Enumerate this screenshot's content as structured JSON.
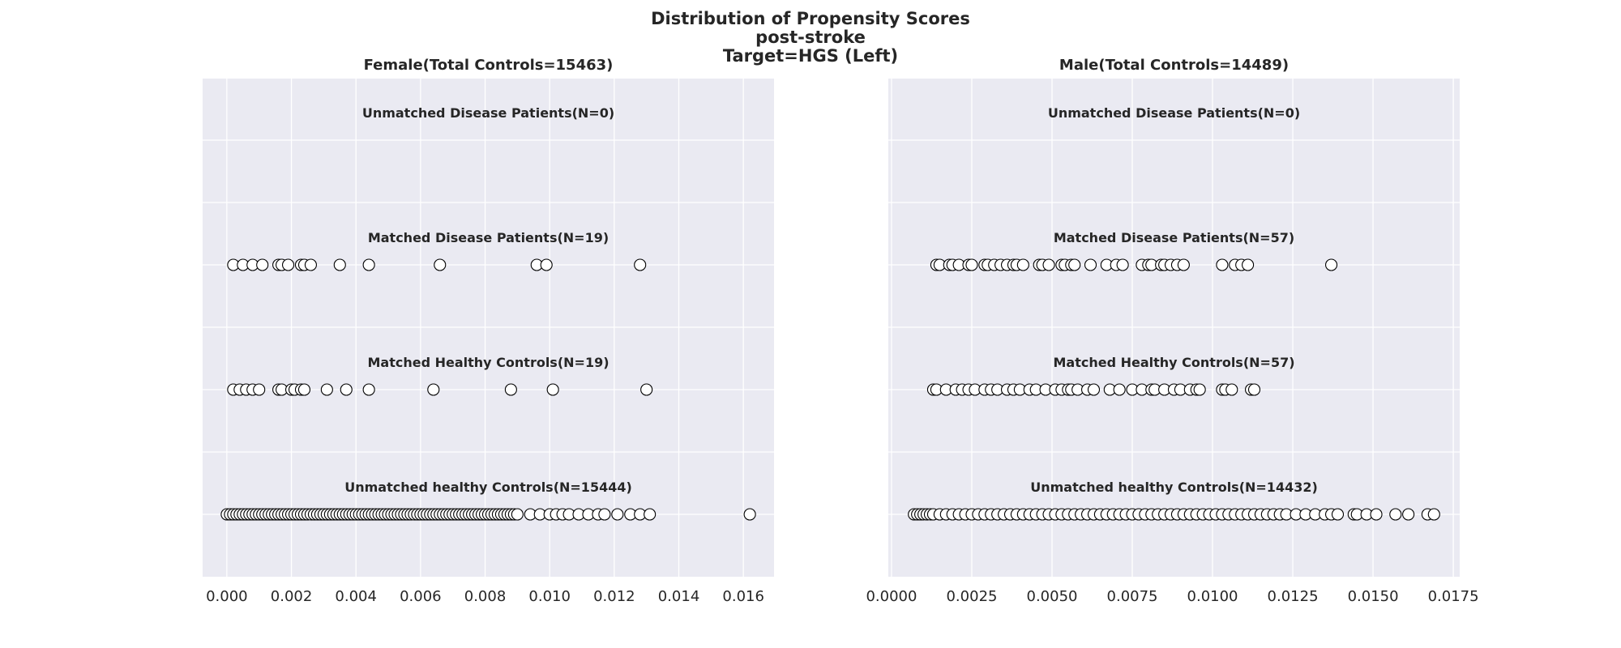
{
  "figure": {
    "title_lines": [
      "Distribution of Propensity Scores",
      "post-stroke",
      "Target=HGS (Left)"
    ],
    "background_color": "#eaeaf2",
    "grid_color": "#ffffff",
    "marker_face": "#ffffff",
    "marker_edge": "#000000"
  },
  "chart_data": [
    {
      "type": "scatter",
      "title": "Female(Total Controls=15463)",
      "xlabel": "",
      "ylabel": "",
      "xlim": [
        -0.00075,
        0.01695
      ],
      "xticks": [
        0.0,
        0.002,
        0.004,
        0.006,
        0.008,
        0.01,
        0.012,
        0.014,
        0.016
      ],
      "xtick_labels": [
        "0.000",
        "0.002",
        "0.004",
        "0.006",
        "0.008",
        "0.010",
        "0.012",
        "0.014",
        "0.016"
      ],
      "grid": true,
      "series": [
        {
          "name": "Unmatched Disease Patients(N=0)",
          "values": []
        },
        {
          "name": "Matched Disease Patients(N=19)",
          "values": [
            0.0002,
            0.0005,
            0.0008,
            0.0011,
            0.0016,
            0.0017,
            0.0019,
            0.0023,
            0.0024,
            0.0026,
            0.0035,
            0.0044,
            0.0066,
            0.0096,
            0.0099,
            0.0128
          ]
        },
        {
          "name": "Matched Healthy Controls(N=19)",
          "values": [
            0.0002,
            0.0004,
            0.0006,
            0.0008,
            0.001,
            0.0016,
            0.0017,
            0.002,
            0.0021,
            0.0023,
            0.0024,
            0.0031,
            0.0037,
            0.0044,
            0.0064,
            0.0088,
            0.0101,
            0.013
          ]
        },
        {
          "name": "Unmatched healthy Controls(N=15444)",
          "values": [
            0.0,
            0.0001,
            0.0002,
            0.0003,
            0.0004,
            0.0005,
            0.0006,
            0.0007,
            0.0008,
            0.0009,
            0.001,
            0.0011,
            0.0012,
            0.0013,
            0.0014,
            0.0015,
            0.0016,
            0.0017,
            0.0018,
            0.0019,
            0.002,
            0.0021,
            0.0022,
            0.0023,
            0.0024,
            0.0025,
            0.0026,
            0.0027,
            0.0028,
            0.0029,
            0.003,
            0.0031,
            0.0032,
            0.0033,
            0.0034,
            0.0035,
            0.0036,
            0.0037,
            0.0038,
            0.0039,
            0.004,
            0.0041,
            0.0042,
            0.0043,
            0.0044,
            0.0045,
            0.0046,
            0.0047,
            0.0048,
            0.0049,
            0.005,
            0.0051,
            0.0052,
            0.0053,
            0.0054,
            0.0055,
            0.0056,
            0.0057,
            0.0058,
            0.0059,
            0.006,
            0.0061,
            0.0062,
            0.0063,
            0.0064,
            0.0065,
            0.0066,
            0.0067,
            0.0068,
            0.0069,
            0.007,
            0.0071,
            0.0072,
            0.0073,
            0.0074,
            0.0075,
            0.0076,
            0.0077,
            0.0078,
            0.0079,
            0.008,
            0.0081,
            0.0082,
            0.0083,
            0.0084,
            0.0085,
            0.0086,
            0.0087,
            0.0088,
            0.0089,
            0.009,
            0.0094,
            0.0097,
            0.01,
            0.0102,
            0.0104,
            0.0106,
            0.0109,
            0.0112,
            0.0115,
            0.0117,
            0.0121,
            0.0125,
            0.0128,
            0.0131,
            0.0162
          ]
        }
      ]
    },
    {
      "type": "scatter",
      "title": "Male(Total Controls=14489)",
      "xlabel": "",
      "ylabel": "",
      "xlim": [
        -0.0001,
        0.0177
      ],
      "xticks": [
        0.0,
        0.0025,
        0.005,
        0.0075,
        0.01,
        0.0125,
        0.015,
        0.0175
      ],
      "xtick_labels": [
        "0.0000",
        "0.0025",
        "0.0050",
        "0.0075",
        "0.0100",
        "0.0125",
        "0.0150",
        "0.0175"
      ],
      "grid": true,
      "series": [
        {
          "name": "Unmatched Disease Patients(N=0)",
          "values": []
        },
        {
          "name": "Matched Disease Patients(N=57)",
          "values": [
            0.0014,
            0.0015,
            0.0018,
            0.0019,
            0.0021,
            0.0024,
            0.0025,
            0.0029,
            0.003,
            0.0032,
            0.0034,
            0.0036,
            0.0038,
            0.0039,
            0.0041,
            0.0046,
            0.0047,
            0.0049,
            0.0053,
            0.0054,
            0.0056,
            0.0057,
            0.0062,
            0.0067,
            0.007,
            0.0072,
            0.0078,
            0.008,
            0.0081,
            0.0084,
            0.0085,
            0.0087,
            0.0089,
            0.0091,
            0.0103,
            0.0107,
            0.0109,
            0.0111,
            0.0137
          ]
        },
        {
          "name": "Matched Healthy Controls(N=57)",
          "values": [
            0.0013,
            0.0014,
            0.0017,
            0.002,
            0.0022,
            0.0024,
            0.0026,
            0.0029,
            0.0031,
            0.0033,
            0.0036,
            0.0038,
            0.004,
            0.0043,
            0.0045,
            0.0048,
            0.0051,
            0.0053,
            0.0055,
            0.0056,
            0.0058,
            0.0061,
            0.0063,
            0.0068,
            0.0071,
            0.0075,
            0.0078,
            0.0081,
            0.0082,
            0.0085,
            0.0088,
            0.009,
            0.0093,
            0.0095,
            0.0096,
            0.0103,
            0.0104,
            0.0106,
            0.0112,
            0.0113
          ]
        },
        {
          "name": "Unmatched healthy Controls(N=14432)",
          "values": [
            0.0007,
            0.0008,
            0.0009,
            0.001,
            0.0011,
            0.0012,
            0.0013,
            0.0015,
            0.0017,
            0.0019,
            0.0021,
            0.0023,
            0.0025,
            0.0027,
            0.0029,
            0.0031,
            0.0033,
            0.0035,
            0.0037,
            0.0039,
            0.0041,
            0.0043,
            0.0045,
            0.0047,
            0.0049,
            0.0051,
            0.0053,
            0.0055,
            0.0057,
            0.0059,
            0.0061,
            0.0063,
            0.0065,
            0.0067,
            0.0069,
            0.0071,
            0.0073,
            0.0075,
            0.0077,
            0.0079,
            0.0081,
            0.0083,
            0.0085,
            0.0087,
            0.0089,
            0.0091,
            0.0093,
            0.0095,
            0.0097,
            0.0099,
            0.0101,
            0.0103,
            0.0105,
            0.0107,
            0.0109,
            0.0111,
            0.0113,
            0.0115,
            0.0117,
            0.0119,
            0.0121,
            0.0123,
            0.0126,
            0.0129,
            0.0132,
            0.0135,
            0.0137,
            0.0139,
            0.0144,
            0.0145,
            0.0148,
            0.0151,
            0.0157,
            0.0161,
            0.0167,
            0.0169
          ]
        }
      ]
    }
  ]
}
